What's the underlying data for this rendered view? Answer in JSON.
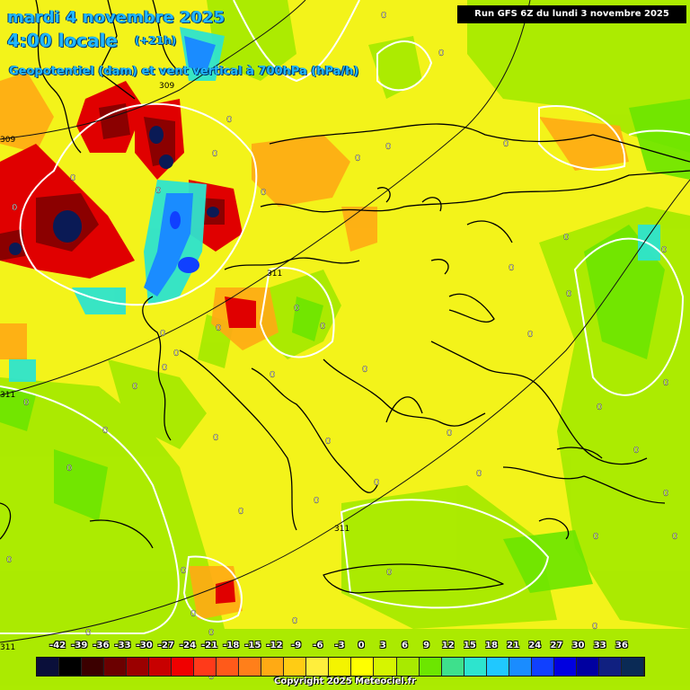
{
  "header": {
    "date": "mardi 4 novembre 2025",
    "time": "4:00 locale",
    "lead": "(+21h)",
    "parameter": "Geopotentiel (dam) et vent vertical à 700hPa (hPa/h)"
  },
  "run_info": "Run GFS 6Z du lundi 3 novembre 2025",
  "legend": {
    "ticks": [
      "-42",
      "-39",
      "-36",
      "-33",
      "-30",
      "-27",
      "-24",
      "-21",
      "-18",
      "-15",
      "-12",
      "-9",
      "-6",
      "-3",
      "0",
      "3",
      "6",
      "9",
      "12",
      "15",
      "18",
      "21",
      "24",
      "27",
      "30",
      "33",
      "36"
    ],
    "colors": [
      "#0a0f3a",
      "#000000",
      "#3b0000",
      "#6b0000",
      "#9b0000",
      "#c80000",
      "#f00000",
      "#ff3a1a",
      "#ff5a1a",
      "#ff7f1a",
      "#ffaa14",
      "#ffcc14",
      "#ffee3c",
      "#f4f400",
      "#ffff00",
      "#d6f500",
      "#a8ea00",
      "#6ce600",
      "#3ee08c",
      "#2de4ce",
      "#20c8ff",
      "#1a8cff",
      "#1040ff",
      "#0000e0",
      "#0000a0",
      "#102080",
      "#0a2a55"
    ]
  },
  "map": {
    "contour_labels": [
      "309",
      "309",
      "311",
      "311",
      "311",
      "311"
    ],
    "zero_labels": [
      "0",
      "0",
      "0",
      "0",
      "0",
      "0",
      "0",
      "0",
      "0",
      "0",
      "0",
      "0",
      "0",
      "0",
      "0",
      "0",
      "0",
      "0",
      "0",
      "0",
      "0",
      "0",
      "0",
      "0",
      "0",
      "0",
      "0",
      "0",
      "0",
      "0",
      "0",
      "0",
      "0",
      "0",
      "0",
      "0",
      "0",
      "0",
      "0",
      "0",
      "0",
      "0",
      "0",
      "0",
      "0",
      "0",
      "0",
      "0",
      "0",
      "0"
    ],
    "colors": {
      "base_yellow": "#ffff00",
      "light_yellow": "#f6f52a",
      "green": "#a8ea00",
      "bright_green": "#6ce600",
      "orange": "#ffaa14",
      "red": "#e00000",
      "dark_red": "#8b0000",
      "blue": "#1a8cff",
      "cyan": "#2de4ce",
      "navy": "#0a1a55",
      "coast": "#000000",
      "zero_contour": "#ffffff"
    }
  },
  "copyright": "Copyright 2025 Meteociel.fr"
}
